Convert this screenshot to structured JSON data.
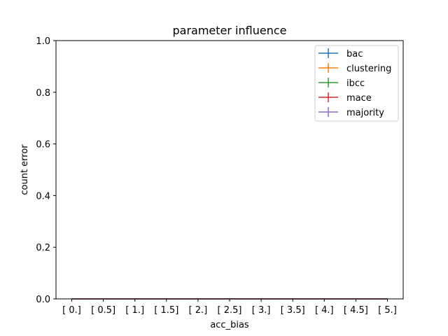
{
  "chart_data": {
    "type": "line",
    "title": "parameter influence",
    "xlabel": "acc_bias",
    "ylabel": "count error",
    "categories": [
      "[ 0.]",
      "[ 0.5]",
      "[ 1.]",
      "[ 1.5]",
      "[ 2.]",
      "[ 2.5]",
      "[ 3.]",
      "[ 3.5]",
      "[ 4.]",
      "[ 4.5]",
      "[ 5.]"
    ],
    "ylim": [
      0,
      1
    ],
    "yticks": [
      "0.0",
      "0.2",
      "0.4",
      "0.6",
      "0.8",
      "1.0"
    ],
    "grid": false,
    "legend_position": "top-right",
    "error_bars": true,
    "series": [
      {
        "name": "bac",
        "color": "#1f77b4",
        "values": [
          0,
          0,
          0,
          0,
          0,
          0,
          0,
          0,
          0,
          0,
          0
        ]
      },
      {
        "name": "clustering",
        "color": "#ff7f0e",
        "values": [
          0,
          0,
          0,
          0,
          0,
          0,
          0,
          0,
          0,
          0,
          0
        ]
      },
      {
        "name": "ibcc",
        "color": "#2ca02c",
        "values": [
          0,
          0,
          0,
          0,
          0,
          0,
          0,
          0,
          0,
          0,
          0
        ]
      },
      {
        "name": "mace",
        "color": "#d62728",
        "values": [
          0,
          0,
          0,
          0,
          0,
          0,
          0,
          0,
          0,
          0,
          0
        ]
      },
      {
        "name": "majority",
        "color": "#9467bd",
        "values": [
          0,
          0,
          0,
          0,
          0,
          0,
          0,
          0,
          0,
          0,
          0
        ]
      }
    ]
  }
}
